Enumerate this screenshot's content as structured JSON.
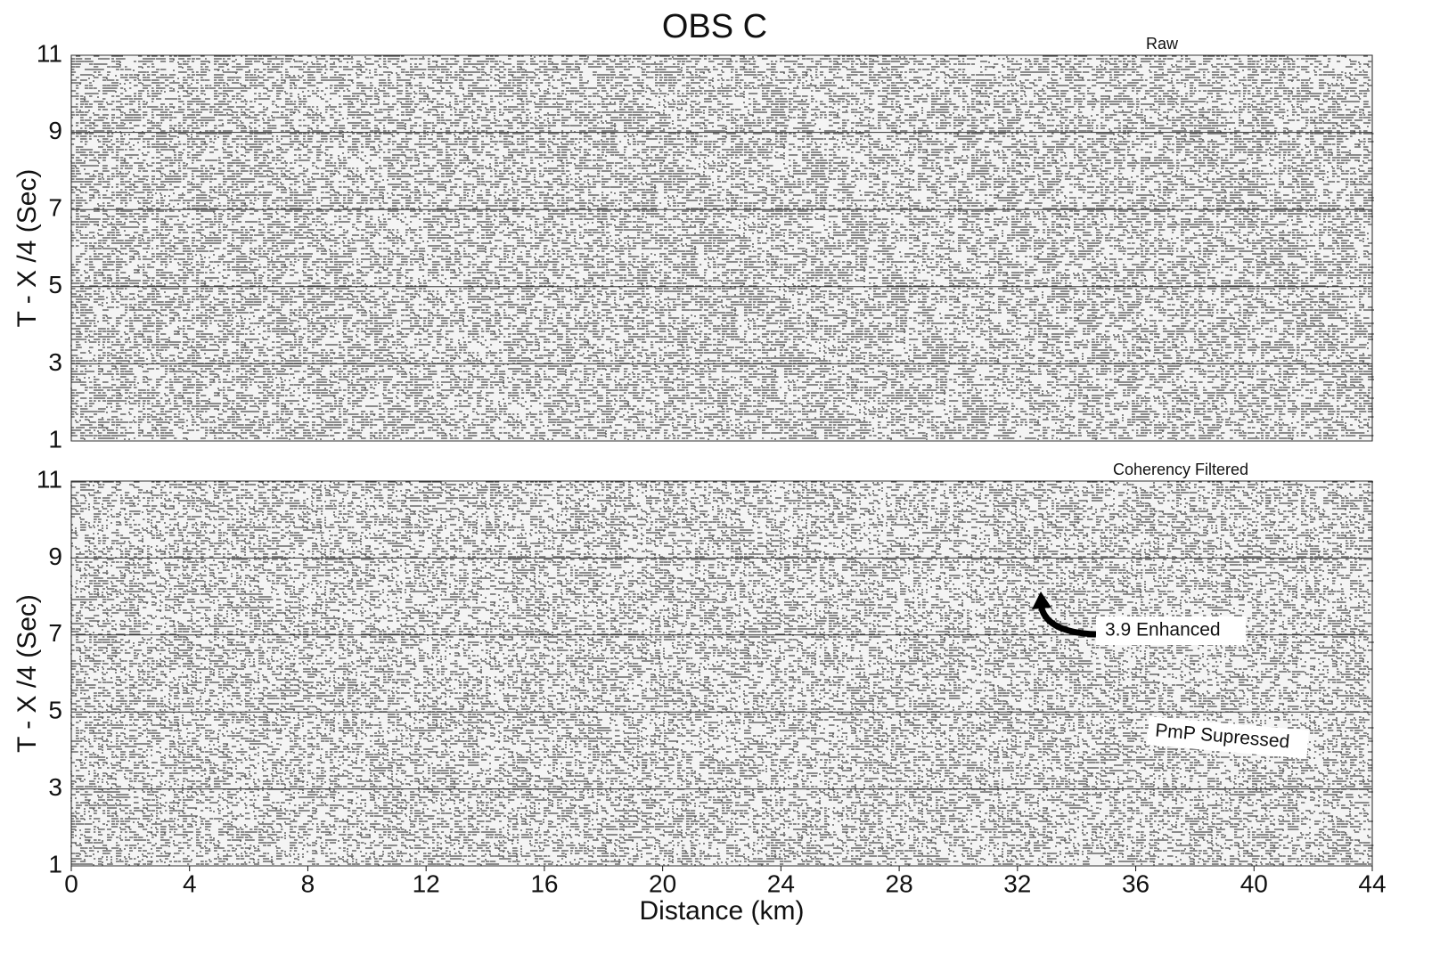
{
  "chart_data": [
    {
      "type": "seismic",
      "title": "OBS C",
      "subtitle": "Raw",
      "ylabel": "T - X /4 (Sec)",
      "xlim": [
        0,
        44
      ],
      "ylim": [
        1,
        11
      ],
      "yticks": [
        1,
        3,
        5,
        7,
        9,
        11
      ],
      "grid": true
    },
    {
      "type": "seismic",
      "subtitle": "Coherency Filtered",
      "ylabel": "T - X /4 (Sec)",
      "xlabel": "Distance (km)",
      "xlim": [
        0,
        44
      ],
      "ylim": [
        1,
        11
      ],
      "yticks": [
        1,
        3,
        5,
        7,
        9,
        11
      ],
      "xticks": [
        0,
        4,
        8,
        12,
        16,
        20,
        24,
        28,
        32,
        36,
        40,
        44
      ],
      "grid": true,
      "annotations": [
        "3.9  Enhanced",
        "PmP Supressed"
      ]
    }
  ]
}
